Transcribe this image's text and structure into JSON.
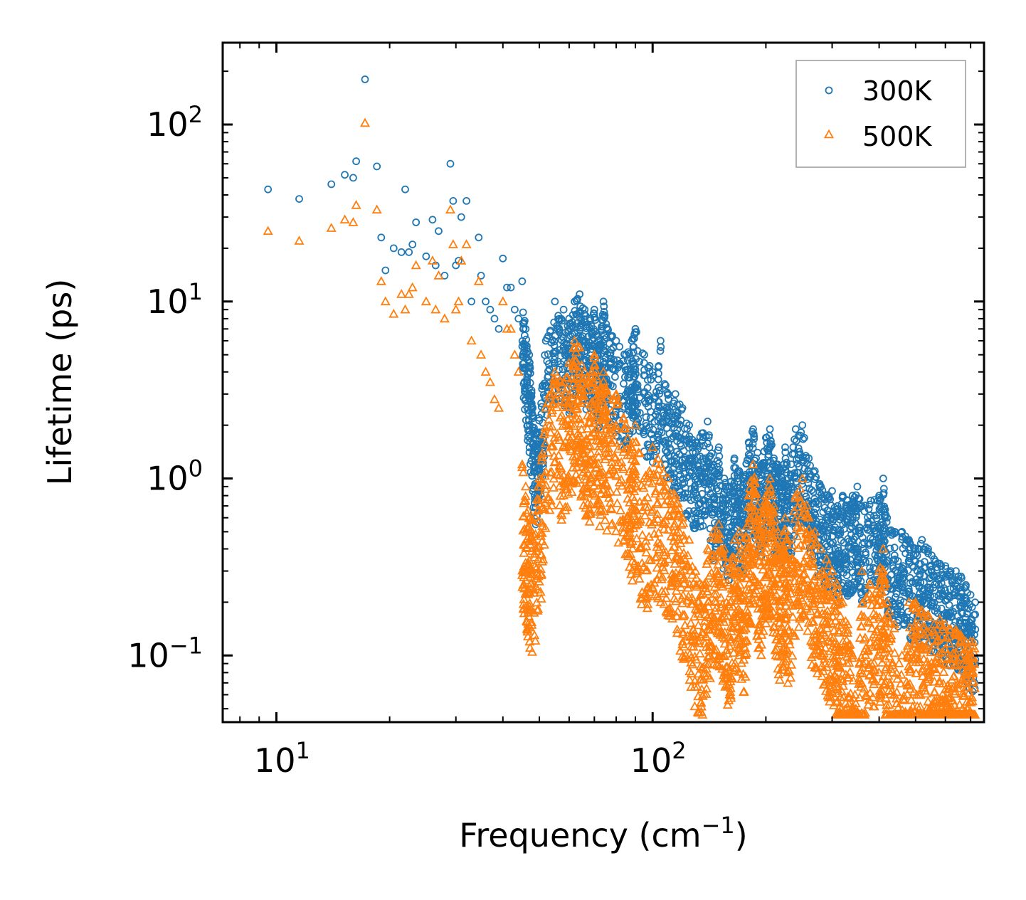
{
  "chart_data": {
    "type": "scatter",
    "title": "",
    "xlabel": "Frequency (cm",
    "xlabel_sup": "−1",
    "xlabel_close": ")",
    "ylabel": "Lifetime (ps)",
    "xscale": "log",
    "yscale": "log",
    "xlim": [
      7.2,
      760
    ],
    "ylim": [
      0.042,
      290
    ],
    "x_tick_labels": [
      {
        "value": 10,
        "base": "10",
        "exp": "1"
      },
      {
        "value": 100,
        "base": "10",
        "exp": "2"
      }
    ],
    "y_tick_labels": [
      {
        "value": 0.1,
        "base": "10",
        "exp": "−1"
      },
      {
        "value": 1,
        "base": "10",
        "exp": "0"
      },
      {
        "value": 10,
        "base": "10",
        "exp": "1"
      },
      {
        "value": 100,
        "base": "10",
        "exp": "2"
      }
    ],
    "legend": {
      "placement": "top-right",
      "entries": [
        {
          "label": "300K",
          "marker": "circle",
          "color": "#1f77b4"
        },
        {
          "label": "500K",
          "marker": "triangle",
          "color": "#ff7f0e"
        }
      ]
    },
    "series": [
      {
        "name": "300K",
        "marker": "circle",
        "color": "#1f77b4",
        "points": [
          [
            9.5,
            43
          ],
          [
            11.5,
            38
          ],
          [
            14,
            46
          ],
          [
            15.2,
            52
          ],
          [
            16,
            50
          ],
          [
            16.3,
            62
          ],
          [
            17.2,
            180
          ],
          [
            18.5,
            58
          ],
          [
            19,
            23
          ],
          [
            19.5,
            15
          ],
          [
            20.5,
            20
          ],
          [
            21.5,
            19
          ],
          [
            22,
            43
          ],
          [
            22.5,
            19
          ],
          [
            23,
            21
          ],
          [
            23.5,
            28
          ],
          [
            25,
            18
          ],
          [
            26,
            29
          ],
          [
            26.5,
            16
          ],
          [
            27,
            25
          ],
          [
            28,
            14
          ],
          [
            29,
            60
          ],
          [
            29.5,
            37
          ],
          [
            30,
            16
          ],
          [
            30.5,
            17
          ],
          [
            31,
            30
          ],
          [
            32,
            37
          ],
          [
            33,
            10
          ],
          [
            34.5,
            23
          ],
          [
            35,
            14
          ],
          [
            36,
            10
          ],
          [
            37,
            9
          ],
          [
            38,
            8
          ],
          [
            39,
            7
          ],
          [
            40,
            17.5
          ],
          [
            41,
            12
          ],
          [
            42,
            12
          ],
          [
            43,
            9
          ],
          [
            44,
            8
          ],
          [
            45,
            13
          ],
          [
            46,
            7
          ],
          [
            47,
            5
          ],
          [
            48,
            2.5
          ],
          [
            49,
            1.8
          ],
          [
            50,
            2.2
          ],
          [
            52,
            6
          ],
          [
            55,
            10
          ],
          [
            58,
            9
          ],
          [
            60,
            8
          ],
          [
            62,
            10
          ],
          [
            64,
            11
          ],
          [
            66,
            9
          ],
          [
            68,
            8
          ],
          [
            70,
            9
          ],
          [
            72,
            6
          ],
          [
            74,
            10
          ],
          [
            76,
            7
          ],
          [
            80,
            6
          ],
          [
            85,
            5
          ],
          [
            88,
            6
          ],
          [
            90,
            7
          ],
          [
            95,
            5
          ],
          [
            100,
            4
          ],
          [
            105,
            6
          ],
          [
            110,
            3
          ],
          [
            115,
            3
          ],
          [
            120,
            2.5
          ],
          [
            125,
            2
          ],
          [
            130,
            1.6
          ],
          [
            135,
            1.8
          ],
          [
            140,
            2.1
          ],
          [
            145,
            1.2
          ],
          [
            150,
            1.5
          ],
          [
            155,
            1.0
          ],
          [
            160,
            0.9
          ],
          [
            165,
            1.3
          ],
          [
            170,
            1.1
          ],
          [
            175,
            1.0
          ],
          [
            180,
            1.6
          ],
          [
            185,
            1.9
          ],
          [
            190,
            1.4
          ],
          [
            195,
            1.2
          ],
          [
            200,
            1.7
          ],
          [
            205,
            1.9
          ],
          [
            210,
            1.3
          ],
          [
            215,
            1.2
          ],
          [
            220,
            1.1
          ],
          [
            225,
            1.5
          ],
          [
            230,
            1.0
          ],
          [
            240,
            1.9
          ],
          [
            250,
            2.0
          ],
          [
            260,
            1.3
          ],
          [
            270,
            1.1
          ],
          [
            280,
            0.9
          ],
          [
            290,
            0.8
          ],
          [
            300,
            0.85
          ],
          [
            310,
            0.7
          ],
          [
            320,
            0.8
          ],
          [
            330,
            0.75
          ],
          [
            340,
            0.8
          ],
          [
            350,
            0.9
          ],
          [
            360,
            0.7
          ],
          [
            380,
            0.75
          ],
          [
            400,
            0.8
          ],
          [
            410,
            1.0
          ],
          [
            420,
            0.6
          ],
          [
            440,
            0.5
          ],
          [
            460,
            0.5
          ],
          [
            480,
            0.45
          ],
          [
            500,
            0.4
          ],
          [
            520,
            0.45
          ],
          [
            540,
            0.4
          ],
          [
            560,
            0.35
          ],
          [
            580,
            0.33
          ],
          [
            600,
            0.32
          ],
          [
            620,
            0.3
          ],
          [
            640,
            0.3
          ],
          [
            660,
            0.28
          ],
          [
            680,
            0.25
          ],
          [
            700,
            0.22
          ]
        ]
      },
      {
        "name": "500K",
        "marker": "triangle",
        "color": "#ff7f0e",
        "points": [
          [
            9.5,
            25
          ],
          [
            11.5,
            22
          ],
          [
            14,
            26
          ],
          [
            15.2,
            29
          ],
          [
            16,
            28
          ],
          [
            16.3,
            35
          ],
          [
            17.2,
            102
          ],
          [
            18.5,
            33
          ],
          [
            19,
            13
          ],
          [
            19.5,
            10
          ],
          [
            20.5,
            8.5
          ],
          [
            21.5,
            11
          ],
          [
            22,
            9
          ],
          [
            22.5,
            11
          ],
          [
            23,
            12
          ],
          [
            23.5,
            16
          ],
          [
            25,
            10
          ],
          [
            26,
            17
          ],
          [
            26.5,
            9
          ],
          [
            27,
            14
          ],
          [
            28,
            8
          ],
          [
            29,
            33
          ],
          [
            29.5,
            21
          ],
          [
            30,
            9
          ],
          [
            30.5,
            10
          ],
          [
            31,
            17
          ],
          [
            32,
            21
          ],
          [
            33,
            6
          ],
          [
            34.5,
            13
          ],
          [
            35,
            5
          ],
          [
            36,
            4
          ],
          [
            37,
            3.5
          ],
          [
            38,
            2.8
          ],
          [
            39,
            2.5
          ],
          [
            40,
            10
          ],
          [
            41,
            7
          ],
          [
            42,
            7
          ],
          [
            43,
            5
          ],
          [
            44,
            4
          ],
          [
            45,
            1.2
          ],
          [
            46,
            0.9
          ],
          [
            47,
            0.6
          ],
          [
            48,
            0.58
          ],
          [
            50,
            1.0
          ],
          [
            52,
            2.5
          ],
          [
            55,
            4
          ],
          [
            58,
            3.5
          ],
          [
            60,
            4.5
          ],
          [
            62,
            6
          ],
          [
            64,
            5.5
          ],
          [
            66,
            4
          ],
          [
            68,
            3.5
          ],
          [
            70,
            5
          ],
          [
            72,
            3
          ],
          [
            74,
            4
          ],
          [
            76,
            3
          ],
          [
            80,
            3
          ],
          [
            85,
            2
          ],
          [
            88,
            1.5
          ],
          [
            90,
            2
          ],
          [
            95,
            1
          ],
          [
            100,
            1.5
          ],
          [
            105,
            1.2
          ],
          [
            110,
            1
          ],
          [
            115,
            0.8
          ],
          [
            120,
            0.6
          ],
          [
            125,
            0.45
          ],
          [
            130,
            0.3
          ],
          [
            135,
            0.25
          ],
          [
            140,
            0.4
          ],
          [
            145,
            0.5
          ],
          [
            150,
            0.55
          ],
          [
            155,
            0.4
          ],
          [
            160,
            0.3
          ],
          [
            165,
            0.45
          ],
          [
            170,
            0.5
          ],
          [
            175,
            0.35
          ],
          [
            180,
            0.8
          ],
          [
            185,
            1.2
          ],
          [
            190,
            0.7
          ],
          [
            195,
            0.6
          ],
          [
            200,
            0.8
          ],
          [
            205,
            1.0
          ],
          [
            210,
            0.7
          ],
          [
            215,
            0.5
          ],
          [
            220,
            0.4
          ],
          [
            225,
            0.6
          ],
          [
            230,
            0.35
          ],
          [
            240,
            0.8
          ],
          [
            250,
            1.0
          ],
          [
            260,
            0.6
          ],
          [
            270,
            0.5
          ],
          [
            280,
            0.4
          ],
          [
            290,
            0.35
          ],
          [
            300,
            0.3
          ],
          [
            310,
            0.25
          ],
          [
            320,
            0.2
          ],
          [
            330,
            0.15
          ],
          [
            340,
            0.1
          ],
          [
            345,
            0.06
          ],
          [
            350,
            0.048
          ],
          [
            360,
            0.3
          ],
          [
            380,
            0.25
          ],
          [
            400,
            0.3
          ],
          [
            410,
            0.4
          ],
          [
            420,
            0.2
          ],
          [
            440,
            0.15
          ],
          [
            460,
            0.1
          ],
          [
            470,
            0.048
          ],
          [
            480,
            0.2
          ],
          [
            500,
            0.2
          ],
          [
            520,
            0.18
          ],
          [
            540,
            0.17
          ],
          [
            560,
            0.15
          ],
          [
            580,
            0.16
          ],
          [
            600,
            0.15
          ],
          [
            620,
            0.14
          ],
          [
            640,
            0.14
          ],
          [
            660,
            0.13
          ],
          [
            680,
            0.12
          ],
          [
            700,
            0.12
          ]
        ]
      }
    ]
  }
}
